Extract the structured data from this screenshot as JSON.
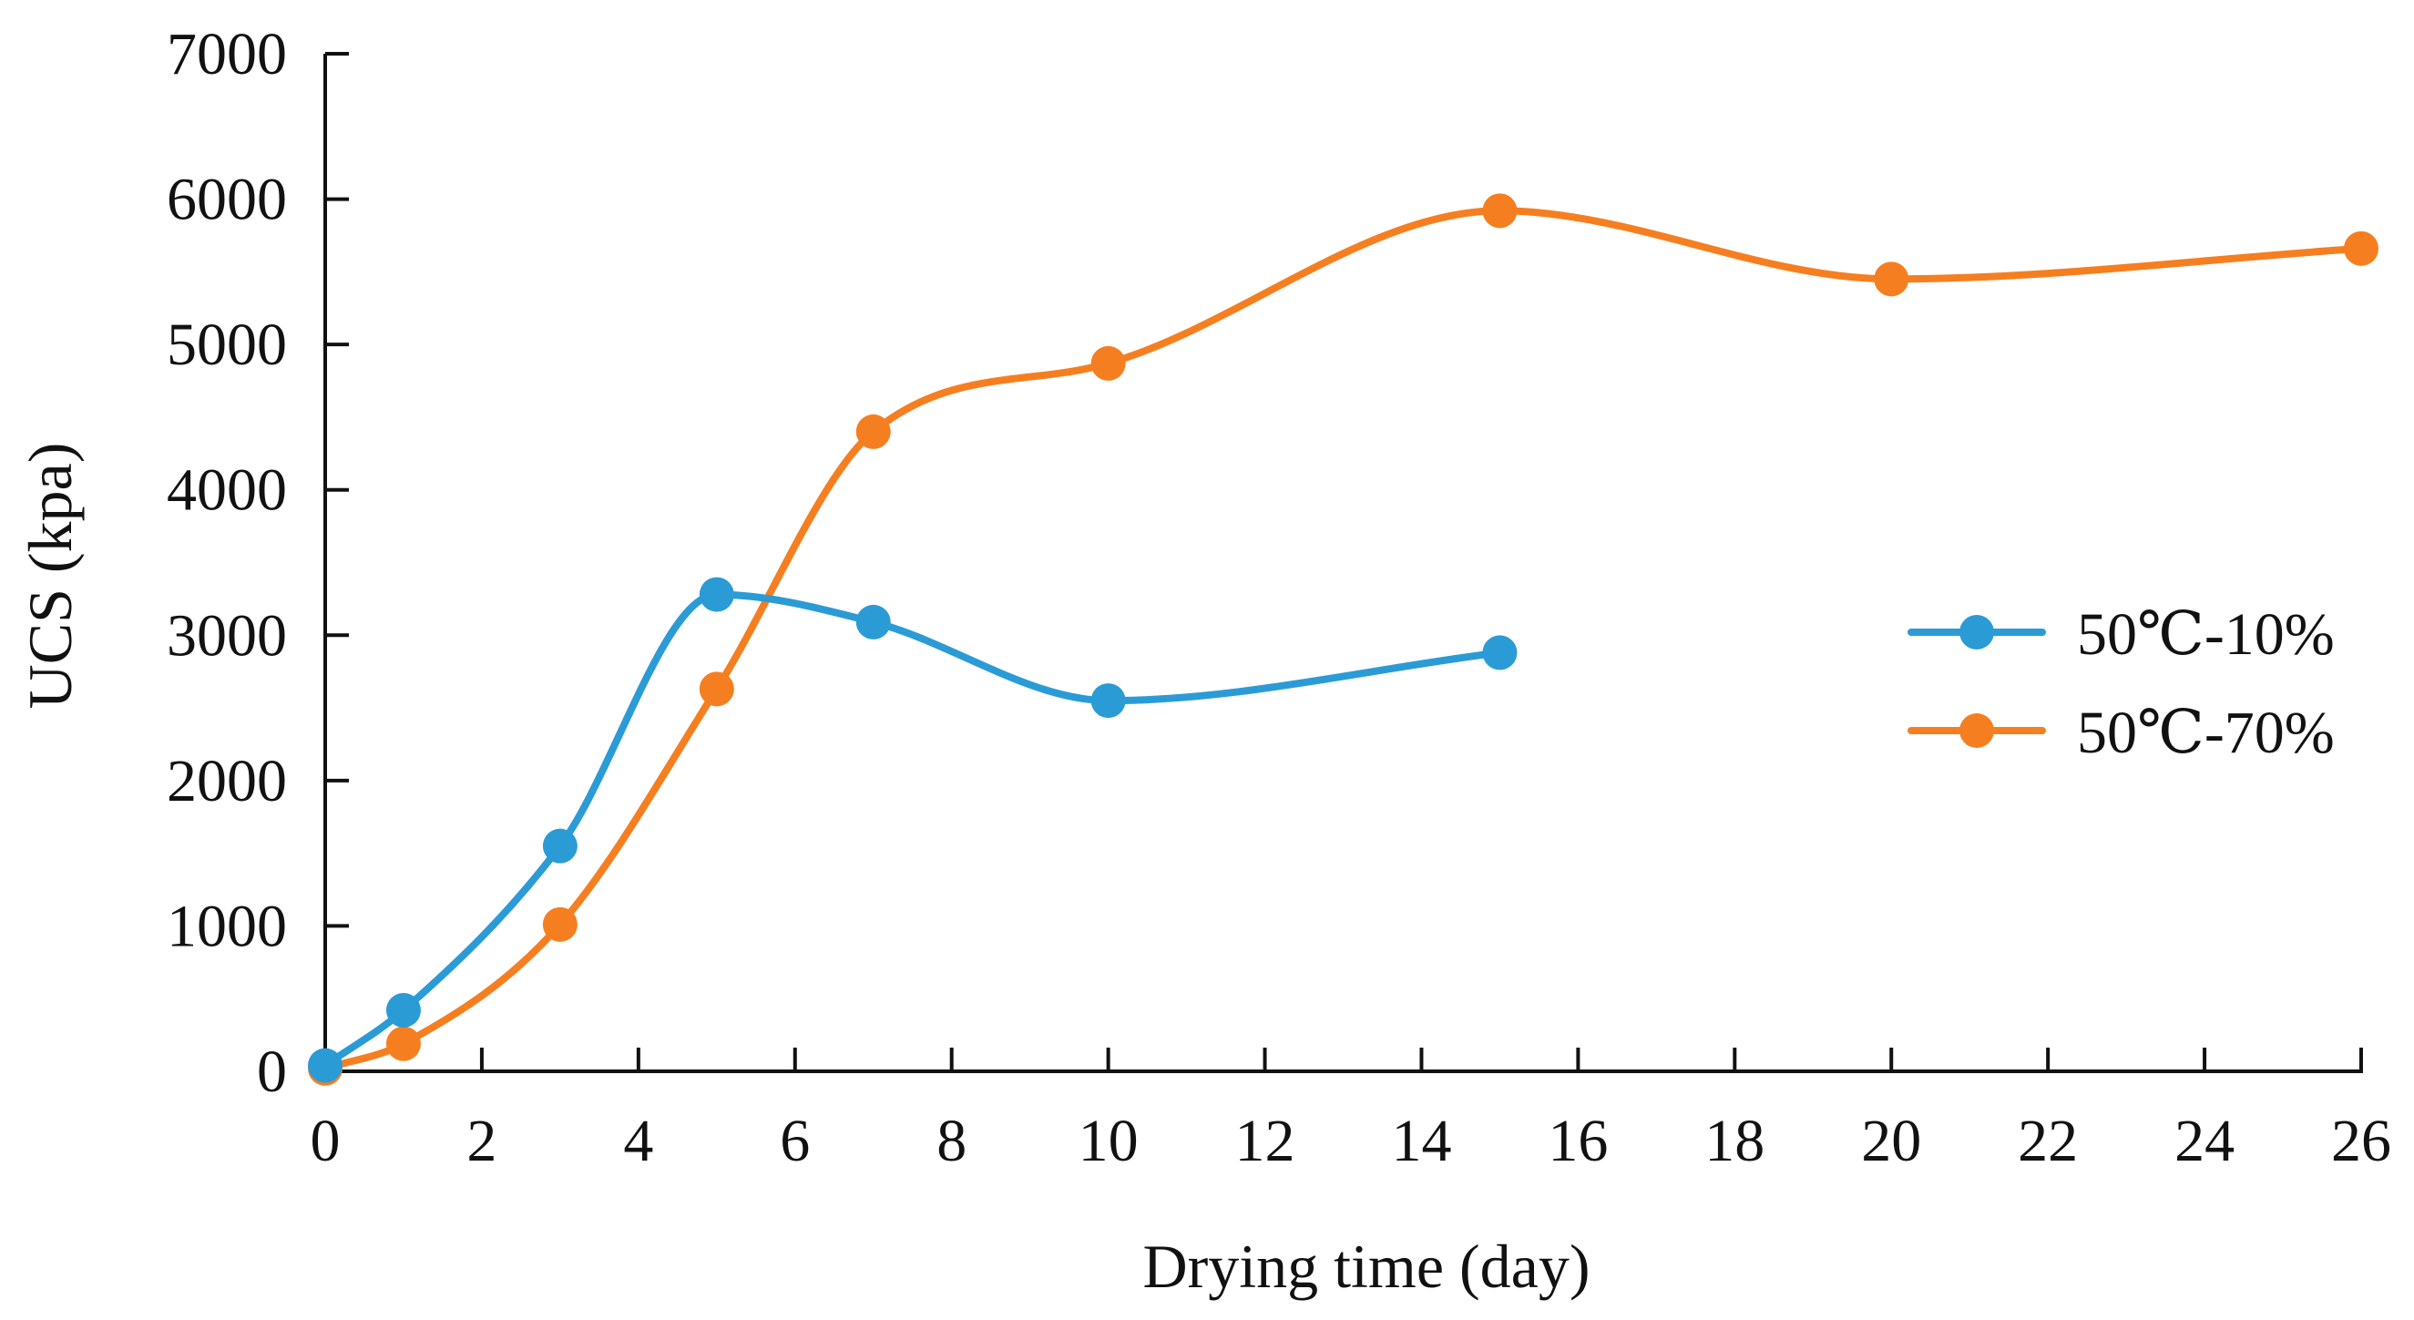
{
  "chart_data": {
    "type": "line",
    "title": "",
    "xlabel": "Drying time (day)",
    "ylabel": "UCS (kpa)",
    "xlim": [
      0,
      26
    ],
    "ylim": [
      0,
      7000
    ],
    "xticks": [
      0,
      2,
      4,
      6,
      8,
      10,
      12,
      14,
      16,
      18,
      20,
      22,
      24,
      26
    ],
    "yticks": [
      0,
      1000,
      2000,
      3000,
      4000,
      5000,
      6000,
      7000
    ],
    "xtick_labels": [
      "0",
      "2",
      "4",
      "6",
      "8",
      "10",
      "12",
      "14",
      "16",
      "18",
      "20",
      "22",
      "24",
      "26"
    ],
    "ytick_labels": [
      "0",
      "1000",
      "2000",
      "3000",
      "4000",
      "5000",
      "6000",
      "7000"
    ],
    "grid": false,
    "legend_position": "right",
    "smooth": true,
    "series": [
      {
        "name": "50℃-10%",
        "color": "#2b9bd6",
        "x": [
          0,
          1,
          3,
          5,
          7,
          10,
          15
        ],
        "y": [
          40,
          420,
          1550,
          3280,
          3090,
          2550,
          2880
        ]
      },
      {
        "name": "50℃-70%",
        "color": "#f57f20",
        "x": [
          0,
          1,
          3,
          5,
          7,
          10,
          15,
          20,
          26
        ],
        "y": [
          20,
          190,
          1010,
          2630,
          4400,
          4870,
          5920,
          5450,
          5660
        ]
      }
    ]
  }
}
